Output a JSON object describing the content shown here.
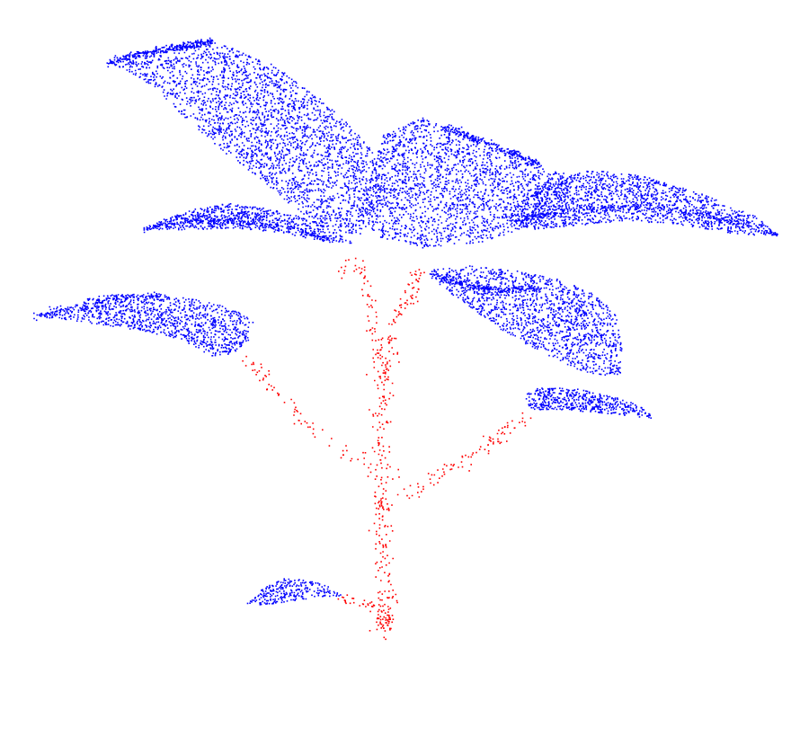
{
  "scene": {
    "background_color": "#ffffff",
    "segments": [
      {
        "label_name": "leaf",
        "color": "#0000ff"
      },
      {
        "label_name": "stem",
        "color": "#ff0000"
      }
    ]
  }
}
